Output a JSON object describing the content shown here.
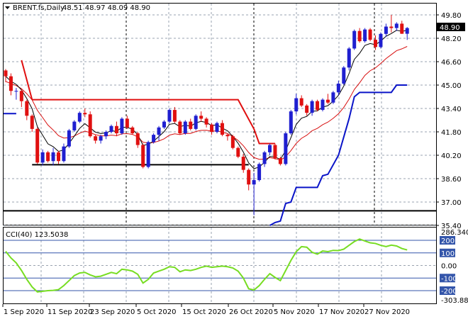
{
  "header": {
    "symbol": "BRENT.fs,Daily",
    "ohlc": "48.51 48.97 48.09 48.90"
  },
  "indicator": {
    "label": "CCI(40) 123.5038"
  },
  "price_axis": {
    "ticks": [
      "49.80",
      "48.20",
      "46.60",
      "45.00",
      "43.40",
      "41.80",
      "40.20",
      "38.60",
      "37.00",
      "35.40"
    ],
    "current": "48.90"
  },
  "cci_axis": {
    "top": "286.3406",
    "bottom": "-303.883",
    "levels": [
      "200",
      "100",
      "0.00",
      "-100",
      "-200"
    ]
  },
  "time_axis": {
    "labels": [
      "1 Sep 2020",
      "11 Sep 2020",
      "23 Sep 2020",
      "5 Oct 2020",
      "15 Oct 2020",
      "26 Oct 2020",
      "5 Nov 2020",
      "17 Nov 2020",
      "27 Nov 2020"
    ]
  },
  "colors": {
    "bull": "#1f1fd0",
    "bear": "#e01010",
    "support": "#000000",
    "resistance": "#e01010",
    "trail_stop": "#0a14c8",
    "cci_line": "#77dd22",
    "cci_band": "#3355aa"
  },
  "chart_data": {
    "type": "candlestick",
    "price_range": [
      35.4,
      50.2
    ],
    "cci_range": [
      -303.883,
      286.3406
    ],
    "candles": [
      [
        46.0,
        46.1,
        45.2,
        45.6
      ],
      [
        45.6,
        45.8,
        44.3,
        44.6
      ],
      [
        44.6,
        44.8,
        44.0,
        44.6
      ],
      [
        44.6,
        44.7,
        43.5,
        43.9
      ],
      [
        43.9,
        44.0,
        42.6,
        42.9
      ],
      [
        42.9,
        43.0,
        41.8,
        42.0
      ],
      [
        42.0,
        42.1,
        39.6,
        39.7
      ],
      [
        39.7,
        40.6,
        39.5,
        40.4
      ],
      [
        40.4,
        40.5,
        39.7,
        39.8
      ],
      [
        39.8,
        40.7,
        39.5,
        40.4
      ],
      [
        40.4,
        40.5,
        39.6,
        39.8
      ],
      [
        39.8,
        41.0,
        39.7,
        40.8
      ],
      [
        40.8,
        42.0,
        40.7,
        41.9
      ],
      [
        41.9,
        42.6,
        41.8,
        42.5
      ],
      [
        42.5,
        43.2,
        42.4,
        43.1
      ],
      [
        43.1,
        43.4,
        42.8,
        43.0
      ],
      [
        43.0,
        43.2,
        41.4,
        41.5
      ],
      [
        41.5,
        41.6,
        41.0,
        41.2
      ],
      [
        41.2,
        41.6,
        41.0,
        41.5
      ],
      [
        41.5,
        41.9,
        41.3,
        41.8
      ],
      [
        41.8,
        42.3,
        41.7,
        42.2
      ],
      [
        42.2,
        42.5,
        41.5,
        41.7
      ],
      [
        41.7,
        42.8,
        41.6,
        42.7
      ],
      [
        42.7,
        42.9,
        42.0,
        42.1
      ],
      [
        42.1,
        42.2,
        41.6,
        41.7
      ],
      [
        41.7,
        41.8,
        40.7,
        40.9
      ],
      [
        40.9,
        41.0,
        39.3,
        39.4
      ],
      [
        39.4,
        41.2,
        39.3,
        41.1
      ],
      [
        41.1,
        41.7,
        41.0,
        41.6
      ],
      [
        41.6,
        42.2,
        41.2,
        42.1
      ],
      [
        42.1,
        42.6,
        42.0,
        42.5
      ],
      [
        42.5,
        43.4,
        42.4,
        43.3
      ],
      [
        43.3,
        43.5,
        42.4,
        42.5
      ],
      [
        42.5,
        42.6,
        41.6,
        41.7
      ],
      [
        41.7,
        42.6,
        41.6,
        42.5
      ],
      [
        42.5,
        42.7,
        41.9,
        42.0
      ],
      [
        42.0,
        43.0,
        41.9,
        42.9
      ],
      [
        42.9,
        43.2,
        42.5,
        42.7
      ],
      [
        42.7,
        42.8,
        42.1,
        42.3
      ],
      [
        42.3,
        42.4,
        41.6,
        41.8
      ],
      [
        41.8,
        42.5,
        41.7,
        42.4
      ],
      [
        42.4,
        42.6,
        41.5,
        41.6
      ],
      [
        41.6,
        41.7,
        41.2,
        41.5
      ],
      [
        41.5,
        41.6,
        40.6,
        40.7
      ],
      [
        40.7,
        40.8,
        40.0,
        40.1
      ],
      [
        40.1,
        40.3,
        39.0,
        39.2
      ],
      [
        39.2,
        39.3,
        37.8,
        38.2
      ],
      [
        38.2,
        39.0,
        36.1,
        38.5
      ],
      [
        38.5,
        39.7,
        38.4,
        39.6
      ],
      [
        39.6,
        40.5,
        39.4,
        40.4
      ],
      [
        40.4,
        41.0,
        40.2,
        40.9
      ],
      [
        40.9,
        41.0,
        39.9,
        40.0
      ],
      [
        40.0,
        40.1,
        39.5,
        39.6
      ],
      [
        39.6,
        41.8,
        39.5,
        41.7
      ],
      [
        41.7,
        43.3,
        41.6,
        43.2
      ],
      [
        43.2,
        44.4,
        43.0,
        44.1
      ],
      [
        44.1,
        44.3,
        43.5,
        43.6
      ],
      [
        43.6,
        43.7,
        42.9,
        43.1
      ],
      [
        43.1,
        44.0,
        42.9,
        43.9
      ],
      [
        43.9,
        44.0,
        43.2,
        43.3
      ],
      [
        43.3,
        44.1,
        43.2,
        44.0
      ],
      [
        44.0,
        44.4,
        43.7,
        43.8
      ],
      [
        43.8,
        44.6,
        43.7,
        44.5
      ],
      [
        44.5,
        45.3,
        44.3,
        45.1
      ],
      [
        45.1,
        46.3,
        45.0,
        46.2
      ],
      [
        46.2,
        47.6,
        46.0,
        47.5
      ],
      [
        47.5,
        48.8,
        47.4,
        48.7
      ],
      [
        48.7,
        48.9,
        47.9,
        48.0
      ],
      [
        48.0,
        48.9,
        47.9,
        48.8
      ],
      [
        48.8,
        48.9,
        48.0,
        48.1
      ],
      [
        48.1,
        48.4,
        47.4,
        47.6
      ],
      [
        47.6,
        48.6,
        47.5,
        48.5
      ],
      [
        48.5,
        49.2,
        48.3,
        49.0
      ],
      [
        49.0,
        49.8,
        48.6,
        48.9
      ],
      [
        48.9,
        49.3,
        48.7,
        49.2
      ],
      [
        49.2,
        49.4,
        48.5,
        48.51
      ],
      [
        48.51,
        48.97,
        48.09,
        48.9
      ]
    ],
    "cci": [
      112,
      60,
      20,
      -40,
      -110,
      -170,
      -210,
      -205,
      -200,
      -198,
      -192,
      -160,
      -120,
      -80,
      -60,
      -55,
      -75,
      -90,
      -85,
      -70,
      -55,
      -65,
      -30,
      -35,
      -45,
      -70,
      -140,
      -110,
      -60,
      -45,
      -30,
      -10,
      -15,
      -50,
      -35,
      -40,
      -30,
      -15,
      -5,
      -15,
      -10,
      -5,
      -10,
      -20,
      -45,
      -100,
      -185,
      -195,
      -160,
      -110,
      -65,
      -95,
      -120,
      -40,
      40,
      110,
      150,
      145,
      105,
      90,
      115,
      110,
      120,
      118,
      130,
      160,
      190,
      210,
      195,
      180,
      175,
      160,
      150,
      162,
      155,
      135,
      123.5
    ],
    "support_levels": [
      39.5,
      36.1
    ],
    "resistance_levels": [
      44.0
    ]
  }
}
